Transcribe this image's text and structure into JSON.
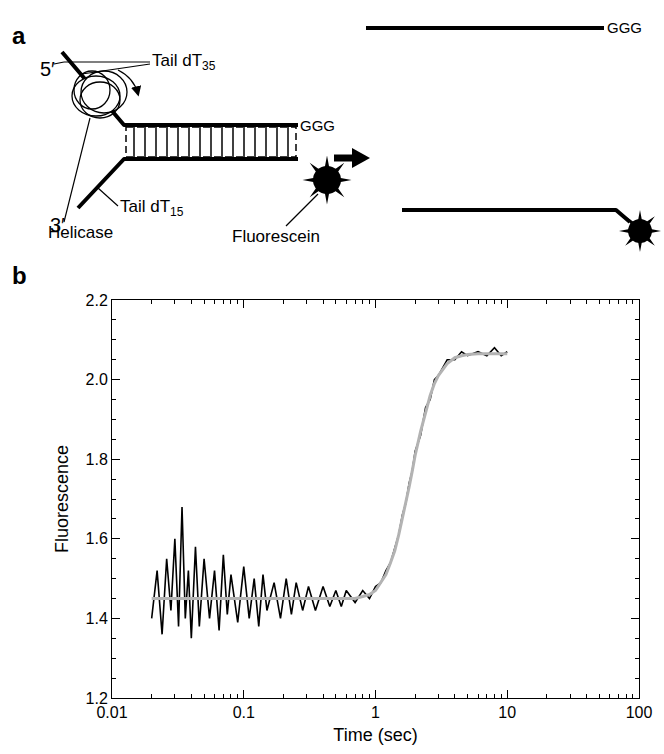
{
  "figure": {
    "panel_labels": [
      "a",
      "b"
    ]
  },
  "diagram": {
    "five_prime": "5′",
    "three_prime": "3′",
    "tail_top": {
      "text": "Tail dT",
      "subscript": "35"
    },
    "tail_bottom": {
      "text": "Tail dT",
      "subscript": "15"
    },
    "helicase": "Helicase",
    "fluorescein": "Fluorescein",
    "overhang": "GGG"
  },
  "chart_data": {
    "type": "line",
    "x_label": "Time (sec)",
    "y_label": "Fluorescence",
    "log": "x",
    "grid": false,
    "xlim": [
      0.01,
      100
    ],
    "xticks": [
      0.01,
      0.1,
      1,
      10,
      100
    ],
    "ylim": [
      1.2,
      2.2
    ],
    "yticks": [
      1.2,
      1.4,
      1.6,
      1.8,
      {
        "value": 2,
        "label": "2.0"
      },
      2.2
    ],
    "series": [
      {
        "color": "#000000",
        "line_style": "solid",
        "x": [
          0.02,
          0.022,
          0.024,
          0.026,
          0.028,
          0.03,
          0.032,
          0.034,
          0.036,
          0.038,
          0.04,
          0.043,
          0.046,
          0.05,
          0.055,
          0.06,
          0.065,
          0.07,
          0.075,
          0.08,
          0.09,
          0.1,
          0.11,
          0.12,
          0.13,
          0.14,
          0.15,
          0.17,
          0.19,
          0.21,
          0.23,
          0.25,
          0.28,
          0.31,
          0.35,
          0.4,
          0.45,
          0.5,
          0.55,
          0.6,
          0.7,
          0.8,
          0.9,
          1.0,
          1.1,
          1.2,
          1.3,
          1.4,
          1.5,
          1.6,
          1.7,
          1.8,
          1.9,
          2.0,
          2.2,
          2.4,
          2.6,
          2.8,
          3.0,
          3.5,
          4.0,
          4.5,
          5.0,
          6.0,
          7.0,
          8.0,
          9.0,
          10.0
        ],
        "values": [
          1.4,
          1.52,
          1.36,
          1.55,
          1.42,
          1.6,
          1.38,
          1.68,
          1.4,
          1.52,
          1.35,
          1.58,
          1.38,
          1.55,
          1.4,
          1.52,
          1.37,
          1.56,
          1.41,
          1.51,
          1.39,
          1.53,
          1.4,
          1.5,
          1.38,
          1.51,
          1.42,
          1.49,
          1.4,
          1.5,
          1.41,
          1.49,
          1.42,
          1.48,
          1.42,
          1.48,
          1.43,
          1.47,
          1.43,
          1.47,
          1.44,
          1.47,
          1.45,
          1.48,
          1.49,
          1.52,
          1.54,
          1.58,
          1.61,
          1.66,
          1.69,
          1.74,
          1.77,
          1.82,
          1.86,
          1.93,
          1.95,
          2.0,
          2.01,
          2.05,
          2.05,
          2.07,
          2.06,
          2.07,
          2.06,
          2.08,
          2.06,
          2.07
        ]
      },
      {
        "color": "#b3b3b3",
        "line_style": "solid",
        "x": [
          0.02,
          0.03,
          0.05,
          0.07,
          0.1,
          0.15,
          0.2,
          0.3,
          0.5,
          0.7,
          0.8,
          0.9,
          1.0,
          1.1,
          1.2,
          1.3,
          1.4,
          1.5,
          1.6,
          1.7,
          1.8,
          1.9,
          2.0,
          2.2,
          2.4,
          2.6,
          2.8,
          3.0,
          3.5,
          4.0,
          4.5,
          5.0,
          6.0,
          7.0,
          8.0,
          10.0
        ],
        "values": [
          1.45,
          1.45,
          1.45,
          1.45,
          1.45,
          1.45,
          1.45,
          1.45,
          1.45,
          1.45,
          1.455,
          1.46,
          1.47,
          1.49,
          1.51,
          1.54,
          1.57,
          1.61,
          1.65,
          1.69,
          1.73,
          1.77,
          1.81,
          1.87,
          1.92,
          1.96,
          1.99,
          2.01,
          2.04,
          2.055,
          2.06,
          2.063,
          2.065,
          2.065,
          2.065,
          2.065
        ]
      }
    ]
  }
}
